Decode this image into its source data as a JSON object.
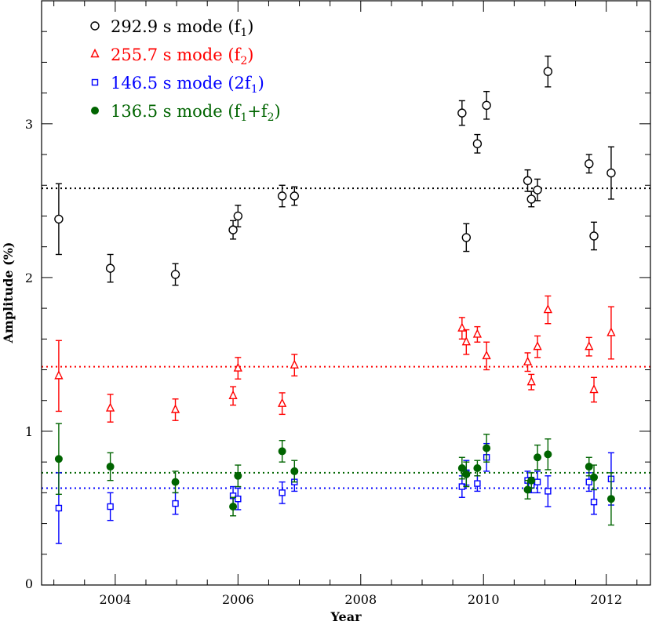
{
  "chart_data": {
    "type": "scatter",
    "xlabel": "Year",
    "ylabel": "Amplitude (%)",
    "xlim": [
      2002.8,
      2012.72
    ],
    "ylim": [
      0,
      3.8
    ],
    "x_ticks": [
      "2004",
      "2006",
      "2008",
      "2010",
      "2012"
    ],
    "x_tick_values": [
      2004,
      2006,
      2008,
      2010,
      2012
    ],
    "y_ticks": [
      "0",
      "1",
      "2",
      "3"
    ],
    "y_tick_values": [
      0,
      1,
      2,
      3
    ],
    "legend_placement": "top-left",
    "series": [
      {
        "name_main": "292.9 s mode (f",
        "name_sub": "1",
        "name_tail": ")",
        "marker": "open-circle",
        "color": "#000000",
        "mean": 2.58,
        "points": [
          {
            "x": 2003.08,
            "y": 2.38,
            "err": 0.23
          },
          {
            "x": 2003.92,
            "y": 2.06,
            "err": 0.09
          },
          {
            "x": 2004.98,
            "y": 2.02,
            "err": 0.07
          },
          {
            "x": 2005.92,
            "y": 2.31,
            "err": 0.06
          },
          {
            "x": 2006.0,
            "y": 2.4,
            "err": 0.07
          },
          {
            "x": 2006.72,
            "y": 2.53,
            "err": 0.07
          },
          {
            "x": 2006.92,
            "y": 2.53,
            "err": 0.06
          },
          {
            "x": 2009.65,
            "y": 3.07,
            "err": 0.08
          },
          {
            "x": 2009.72,
            "y": 2.26,
            "err": 0.09
          },
          {
            "x": 2009.9,
            "y": 2.87,
            "err": 0.06
          },
          {
            "x": 2010.05,
            "y": 3.12,
            "err": 0.09
          },
          {
            "x": 2010.72,
            "y": 2.63,
            "err": 0.07
          },
          {
            "x": 2010.78,
            "y": 2.51,
            "err": 0.05
          },
          {
            "x": 2010.88,
            "y": 2.57,
            "err": 0.07
          },
          {
            "x": 2011.05,
            "y": 3.34,
            "err": 0.1
          },
          {
            "x": 2011.72,
            "y": 2.74,
            "err": 0.06
          },
          {
            "x": 2011.8,
            "y": 2.27,
            "err": 0.09
          },
          {
            "x": 2012.08,
            "y": 2.68,
            "err": 0.17
          }
        ]
      },
      {
        "name_main": "255.7 s mode (f",
        "name_sub": "2",
        "name_tail": ")",
        "marker": "open-triangle",
        "color": "#ff0000",
        "mean": 1.42,
        "points": [
          {
            "x": 2003.08,
            "y": 1.36,
            "err": 0.23
          },
          {
            "x": 2003.92,
            "y": 1.15,
            "err": 0.09
          },
          {
            "x": 2004.98,
            "y": 1.14,
            "err": 0.07
          },
          {
            "x": 2005.92,
            "y": 1.23,
            "err": 0.06
          },
          {
            "x": 2006.0,
            "y": 1.41,
            "err": 0.07
          },
          {
            "x": 2006.72,
            "y": 1.18,
            "err": 0.07
          },
          {
            "x": 2006.92,
            "y": 1.43,
            "err": 0.07
          },
          {
            "x": 2009.65,
            "y": 1.67,
            "err": 0.07
          },
          {
            "x": 2009.72,
            "y": 1.58,
            "err": 0.08
          },
          {
            "x": 2009.9,
            "y": 1.63,
            "err": 0.05
          },
          {
            "x": 2010.05,
            "y": 1.49,
            "err": 0.09
          },
          {
            "x": 2010.72,
            "y": 1.45,
            "err": 0.06
          },
          {
            "x": 2010.78,
            "y": 1.32,
            "err": 0.05
          },
          {
            "x": 2010.88,
            "y": 1.55,
            "err": 0.07
          },
          {
            "x": 2011.05,
            "y": 1.79,
            "err": 0.09
          },
          {
            "x": 2011.72,
            "y": 1.55,
            "err": 0.06
          },
          {
            "x": 2011.8,
            "y": 1.27,
            "err": 0.08
          },
          {
            "x": 2012.08,
            "y": 1.64,
            "err": 0.17
          }
        ]
      },
      {
        "name_main": "146.5 s mode (2f",
        "name_sub": "1",
        "name_tail": ")",
        "marker": "open-square",
        "color": "#0000ff",
        "mean": 0.63,
        "points": [
          {
            "x": 2003.08,
            "y": 0.5,
            "err": 0.23
          },
          {
            "x": 2003.92,
            "y": 0.51,
            "err": 0.09
          },
          {
            "x": 2004.98,
            "y": 0.53,
            "err": 0.07
          },
          {
            "x": 2005.92,
            "y": 0.58,
            "err": 0.06
          },
          {
            "x": 2006.0,
            "y": 0.56,
            "err": 0.07
          },
          {
            "x": 2006.72,
            "y": 0.6,
            "err": 0.07
          },
          {
            "x": 2006.92,
            "y": 0.67,
            "err": 0.06
          },
          {
            "x": 2009.65,
            "y": 0.64,
            "err": 0.07
          },
          {
            "x": 2009.72,
            "y": 0.73,
            "err": 0.08
          },
          {
            "x": 2009.9,
            "y": 0.66,
            "err": 0.05
          },
          {
            "x": 2010.05,
            "y": 0.83,
            "err": 0.09
          },
          {
            "x": 2010.72,
            "y": 0.68,
            "err": 0.06
          },
          {
            "x": 2010.78,
            "y": 0.65,
            "err": 0.05
          },
          {
            "x": 2010.88,
            "y": 0.67,
            "err": 0.07
          },
          {
            "x": 2011.05,
            "y": 0.61,
            "err": 0.1
          },
          {
            "x": 2011.72,
            "y": 0.67,
            "err": 0.06
          },
          {
            "x": 2011.8,
            "y": 0.54,
            "err": 0.08
          },
          {
            "x": 2012.08,
            "y": 0.69,
            "err": 0.17
          }
        ]
      },
      {
        "name_main": "136.5 s mode (f",
        "name_sub": "1",
        "name_tail": "+f",
        "name_sub2": "2",
        "name_tail2": ")",
        "marker": "filled-circle",
        "color": "#006400",
        "mean": 0.73,
        "points": [
          {
            "x": 2003.08,
            "y": 0.82,
            "err": 0.23
          },
          {
            "x": 2003.92,
            "y": 0.77,
            "err": 0.09
          },
          {
            "x": 2004.98,
            "y": 0.67,
            "err": 0.07
          },
          {
            "x": 2005.92,
            "y": 0.51,
            "err": 0.06
          },
          {
            "x": 2006.0,
            "y": 0.71,
            "err": 0.07
          },
          {
            "x": 2006.72,
            "y": 0.87,
            "err": 0.07
          },
          {
            "x": 2006.92,
            "y": 0.74,
            "err": 0.07
          },
          {
            "x": 2009.65,
            "y": 0.76,
            "err": 0.07
          },
          {
            "x": 2009.72,
            "y": 0.72,
            "err": 0.08
          },
          {
            "x": 2009.9,
            "y": 0.76,
            "err": 0.05
          },
          {
            "x": 2010.05,
            "y": 0.89,
            "err": 0.09
          },
          {
            "x": 2010.72,
            "y": 0.62,
            "err": 0.06
          },
          {
            "x": 2010.78,
            "y": 0.68,
            "err": 0.05
          },
          {
            "x": 2010.88,
            "y": 0.83,
            "err": 0.08
          },
          {
            "x": 2011.05,
            "y": 0.85,
            "err": 0.1
          },
          {
            "x": 2011.72,
            "y": 0.77,
            "err": 0.06
          },
          {
            "x": 2011.8,
            "y": 0.7,
            "err": 0.08
          },
          {
            "x": 2012.08,
            "y": 0.56,
            "err": 0.17
          }
        ]
      }
    ]
  }
}
